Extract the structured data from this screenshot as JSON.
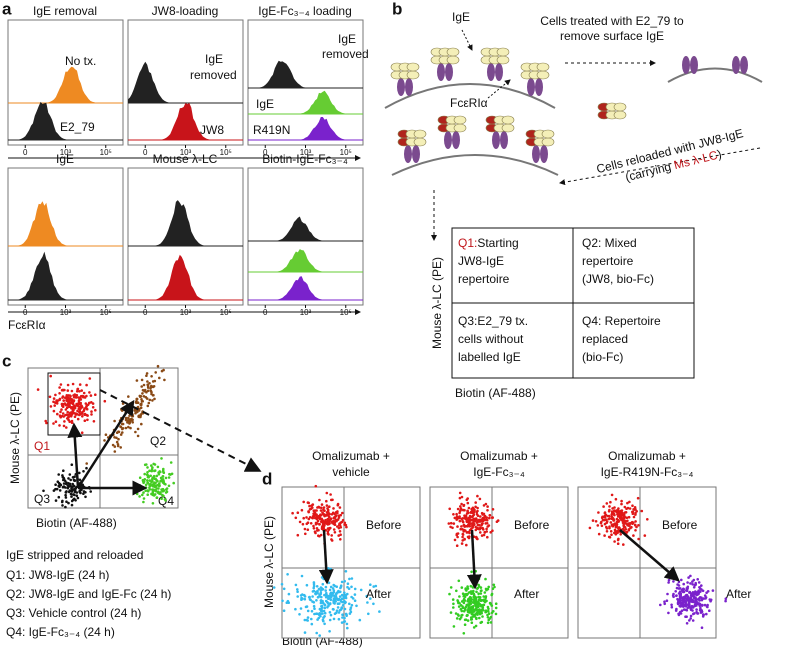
{
  "panel_a": {
    "label": "a",
    "top_titles": [
      "IgE removal",
      "JW8-loading",
      "IgE-Fc₃₋₄ loading"
    ],
    "no_tx": "No tx.",
    "e2_79": "E2_79",
    "ige_removed": [
      "IgE",
      "removed"
    ],
    "jw8": "JW8",
    "ige": "IgE",
    "r419n": "R419N",
    "bottom_titles": [
      "IgE",
      "Mouse λ-LC",
      "Biotin-IgE-Fc₃₋₄"
    ],
    "ticks": [
      "0",
      "10³",
      "10⁵"
    ],
    "x_label": "FcεRIα"
  },
  "panel_b": {
    "label": "b",
    "ige": "IgE",
    "receptor": "FcεRIα",
    "step1": [
      "Cells treated with E2_79 to",
      "remove surface IgE"
    ],
    "step2": [
      "Cells reloaded with JW8-IgE",
      "(carrying ",
      "Ms λ-LC",
      ")"
    ],
    "q1": {
      "tag": "Q1:",
      "lines": [
        "Starting",
        "JW8-IgE",
        "repertoire"
      ]
    },
    "q2": [
      "Q2: Mixed",
      "repertoire",
      "(JW8, bio-Fc)"
    ],
    "q3": [
      "Q3:E2_79 tx.",
      "cells without",
      "labelled IgE"
    ],
    "q4": [
      "Q4: Repertoire",
      "replaced",
      "(bio-Fc)"
    ],
    "y_label": "Mouse λ-LC (PE)",
    "x_label": "Biotin (AF-488)"
  },
  "panel_c": {
    "label": "c",
    "quadrants": [
      "Q1",
      "Q2",
      "Q3",
      "Q4"
    ],
    "y_label": "Mouse λ-LC (PE)",
    "x_label": "Biotin (AF-488)",
    "legend_title": "IgE stripped and reloaded",
    "legend": [
      "Q1: JW8-IgE (24 h)",
      "Q2: JW8-IgE and IgE-Fc (24 h)",
      "Q3: Vehicle control (24 h)",
      "Q4: IgE-Fc₃₋₄ (24 h)"
    ]
  },
  "panel_d": {
    "label": "d",
    "titles": [
      [
        "Omalizumab +",
        "vehicle"
      ],
      [
        "Omalizumab +",
        "IgE-Fc₃₋₄"
      ],
      [
        "Omalizumab +",
        "IgE-R419N-Fc₃₋₄"
      ]
    ],
    "before": "Before",
    "after": "After",
    "y_label": "Mouse λ-LC (PE)",
    "x_label": "Biotin (AF-488)"
  }
}
